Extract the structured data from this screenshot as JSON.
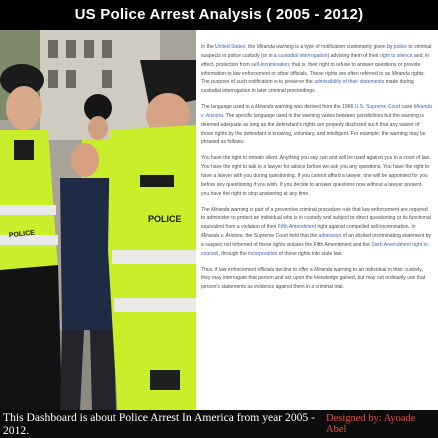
{
  "title": "US Police Arrest Analysis ( 2005 -  2012)",
  "photo": {
    "description_icon": "police-officers-arrest-photo",
    "vest_text": [
      "POLICE",
      "POLICE"
    ]
  },
  "article": {
    "p1": {
      "t1": "In the ",
      "l1": "United States",
      "t2": ", the ",
      "e1": "Miranda warning",
      "t3": " is a type of notification customarily given by ",
      "l2": "police",
      "t4": " to criminal suspects in police custody (or in a ",
      "l3": "custodial interrogation",
      "t5": ") advising them of their ",
      "l4": "right to silence",
      "t6": " and, in effect, protection from ",
      "l5": "self-incrimination",
      "t7": "; that is, their right to refuse to answer questions or provide information to law enforcement or other officials. These rights are often referred to as ",
      "e2": "Miranda",
      "t8": " rights. The purpose of such notification is to preserve the ",
      "l6": "admissibility of their statements",
      "t9": " made during custodial interrogation in later criminal proceedings."
    },
    "p2": {
      "t1": "The language used in a ",
      "e1": "Miranda",
      "t2": " warning was derived from the 1966 ",
      "l1": "U.S. Supreme Court",
      "t3": " case ",
      "l2": "Miranda v. Arizona",
      "t4": ". The specific language used in the warning varies between jurisdictions but the warning is deemed adequate as long as the defendant's rights are properly disclosed such that any waiver of those rights by the defendant is knowing, voluntary, and intelligent. For example, the warning may be phrased as follows:"
    },
    "p3": "You have the right to remain silent. Anything you say can and will be used against you in a court of law. You have the right to talk to a lawyer for advice before we ask you any questions. You have the right to have a lawyer with you during questioning. If you cannot afford a lawyer, one will be appointed for you before any questioning if you wish. If you decide to answer questions now without a lawyer present, you have the right to stop answering at any time.",
    "p4": {
      "t1": "The ",
      "e1": "Miranda",
      "t2": " warning is part of a preventive criminal procedure rule that law enforcement are required to administer to protect an individual who is in custody and subject to direct questioning or its functional equivalent from a violation of their ",
      "l1": "Fifth Amendment",
      "t3": " right against compelled self-incrimination. In ",
      "e2": "Miranda v. Arizona",
      "t4": ", the Supreme Court held that the ",
      "l2": "admission",
      "t5": " of an elicited incriminating statement by a suspect not informed of these rights violates the Fifth Amendment and the ",
      "l3": "Sixth Amendment right to counsel",
      "t6": ", through the ",
      "l4": "incorporation",
      "t7": " of these rights into state law."
    },
    "p5": {
      "t1": "Thus, if law enforcement officials decline to offer a ",
      "e1": "Miranda",
      "t2": " warning to an individual in their custody, they may interrogate that person and act upon the knowledge gained, but may not ordinarily use that person's statements as evidence against them in a criminal trial."
    }
  },
  "footer": {
    "left": "This Dashboard is about Police Arrest In America from year 2005 - 2012.",
    "right": "Designed by: Ayoade Abel"
  }
}
